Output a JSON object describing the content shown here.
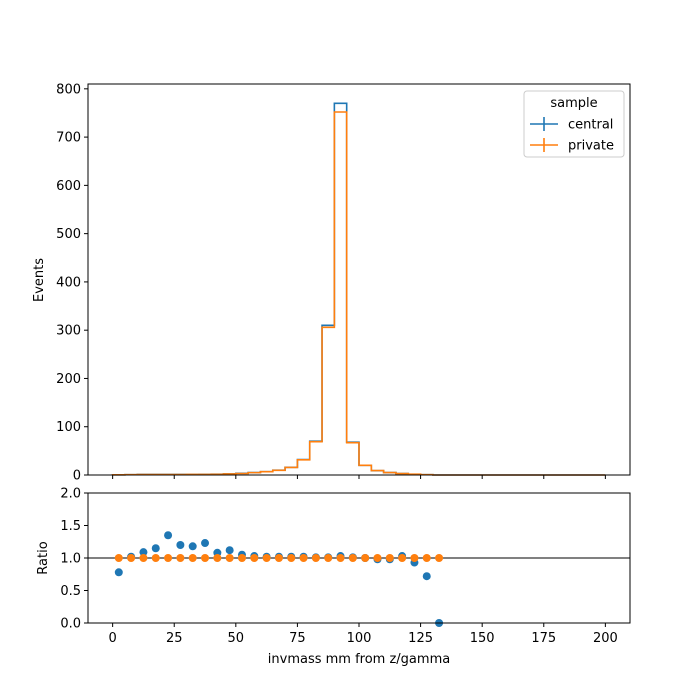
{
  "chart_data": {
    "type": "histogram-with-ratio",
    "top": {
      "ylabel": "Events",
      "ylim": [
        0,
        810
      ],
      "yticks": [
        0,
        100,
        200,
        300,
        400,
        500,
        600,
        700,
        800
      ],
      "bin_edges": [
        0,
        5,
        10,
        15,
        20,
        25,
        30,
        35,
        40,
        45,
        50,
        55,
        60,
        65,
        70,
        75,
        80,
        85,
        90,
        95,
        100,
        105,
        110,
        115,
        120,
        125,
        130,
        135,
        140,
        145,
        150,
        155,
        160,
        165,
        170,
        175,
        180,
        185,
        190,
        195,
        200
      ],
      "series": [
        {
          "name": "central",
          "color": "#1f77b4",
          "values": [
            0.3,
            0.6,
            1.1,
            1.2,
            1.3,
            1.2,
            1.3,
            1.5,
            1.8,
            2.5,
            3.5,
            5,
            7,
            10,
            16,
            32,
            70,
            310,
            770,
            68,
            20,
            9,
            5,
            3,
            1.5,
            0.6,
            0,
            0,
            0,
            0,
            0,
            0,
            0,
            0,
            0,
            0,
            0,
            0,
            0,
            0
          ]
        },
        {
          "name": "private",
          "color": "#ff7f0e",
          "values": [
            0.4,
            0.6,
            1.0,
            1.05,
            1.0,
            1.0,
            1.1,
            1.25,
            1.5,
            2.2,
            3.1,
            4.9,
            6.9,
            9.8,
            15.7,
            31.5,
            69,
            306,
            752,
            67,
            20,
            9.2,
            5.1,
            2.9,
            1.6,
            0.8,
            0,
            0,
            0,
            0,
            0,
            0,
            0,
            0,
            0,
            0,
            0,
            0,
            0,
            0
          ]
        }
      ],
      "legend": {
        "title": "sample",
        "placement": "upper-right",
        "entries": [
          "central",
          "private"
        ]
      }
    },
    "bottom": {
      "ylabel": "Ratio",
      "ylim": [
        0,
        2.0
      ],
      "yticks": [
        "0.0",
        "0.5",
        "1.0",
        "1.5",
        "2.0"
      ],
      "reference_line": 1.0,
      "series": [
        {
          "name": "central",
          "color": "#1f77b4",
          "x": [
            2.5,
            7.5,
            12.5,
            17.5,
            22.5,
            27.5,
            32.5,
            37.5,
            42.5,
            47.5,
            52.5,
            57.5,
            62.5,
            67.5,
            72.5,
            77.5,
            82.5,
            87.5,
            92.5,
            97.5,
            102.5,
            107.5,
            112.5,
            117.5,
            122.5,
            127.5,
            132.5
          ],
          "y": [
            0.78,
            1.02,
            1.09,
            1.15,
            1.35,
            1.2,
            1.18,
            1.23,
            1.08,
            1.12,
            1.05,
            1.03,
            1.02,
            1.02,
            1.02,
            1.02,
            1.01,
            1.01,
            1.03,
            1.01,
            1.0,
            0.98,
            0.98,
            1.03,
            0.93,
            0.72,
            0.0
          ]
        },
        {
          "name": "private",
          "color": "#ff7f0e",
          "x": [
            2.5,
            7.5,
            12.5,
            17.5,
            22.5,
            27.5,
            32.5,
            37.5,
            42.5,
            47.5,
            52.5,
            57.5,
            62.5,
            67.5,
            72.5,
            77.5,
            82.5,
            87.5,
            92.5,
            97.5,
            102.5,
            107.5,
            112.5,
            117.5,
            122.5,
            127.5,
            132.5
          ],
          "y": [
            1.0,
            1.0,
            1.0,
            1.0,
            1.0,
            1.0,
            1.0,
            1.0,
            1.0,
            1.0,
            1.0,
            1.0,
            1.0,
            1.0,
            1.0,
            1.0,
            1.0,
            1.0,
            1.0,
            1.0,
            1.0,
            1.0,
            1.0,
            1.0,
            1.0,
            1.0,
            1.0
          ]
        }
      ]
    },
    "xlabel": "invmass mm from z/gamma",
    "xlim": [
      -10,
      210
    ],
    "xticks": [
      "0",
      "25",
      "50",
      "75",
      "100",
      "125",
      "150",
      "175",
      "200"
    ]
  }
}
